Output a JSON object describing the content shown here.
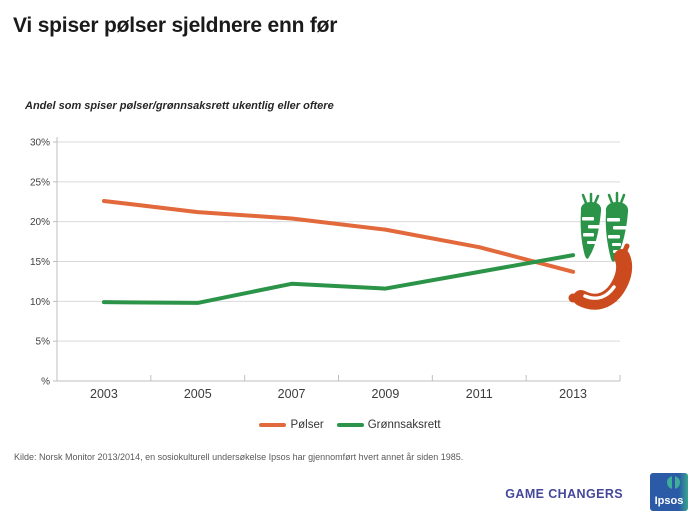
{
  "header": {
    "title": "Vi spiser pølser sjeldnere enn før"
  },
  "chart_data": {
    "type": "line",
    "subtitle": "Andel som spiser pølser/grønnsaksrett  ukentlig eller oftere",
    "categories": [
      "2003",
      "2005",
      "2007",
      "2009",
      "2011",
      "2013"
    ],
    "series": [
      {
        "name": "Pølser",
        "color": "#E2693C",
        "values": [
          22.6,
          21.2,
          20.4,
          19.0,
          16.8,
          13.7
        ]
      },
      {
        "name": "Grønnsaksrett",
        "color": "#2B9448",
        "values": [
          9.9,
          9.8,
          12.2,
          11.6,
          13.7,
          15.8
        ]
      }
    ],
    "xlabel": "",
    "ylabel": "",
    "ylim": [
      0,
      30
    ],
    "ytick_step": 5,
    "ytick_labels": [
      "%",
      "5%",
      "10%",
      "15%",
      "20%",
      "25%",
      "30%"
    ],
    "grid": true,
    "legend_position": "bottom"
  },
  "footer": {
    "source": "Kilde: Norsk Monitor 2013/2014, en sosiokulturell undersøkelse Ipsos har gjennomført hvert annet år siden 1985.",
    "tagline": "GAME CHANGERS",
    "logo_text": "Ipsos"
  },
  "colors": {
    "carrot_green": "#2B9448",
    "sausage_orange": "#CC4B1E",
    "gridline": "#D9D9D9",
    "axis": "#BFBFBF",
    "tagline_blue": "#45479B",
    "logo_blue": "#2B5AA6",
    "logo_teal": "#3FAE99"
  }
}
